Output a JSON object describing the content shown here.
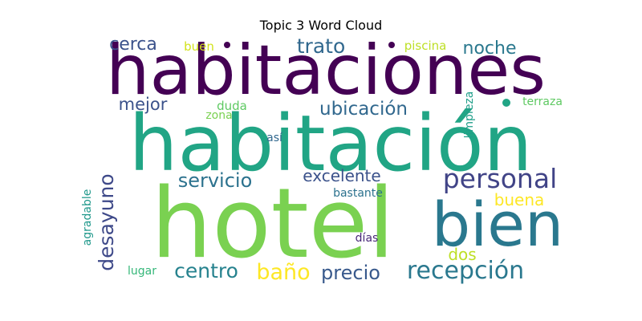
{
  "title": "Topic 3 Word Cloud",
  "words": [
    {
      "text": "habitaciones",
      "color": "#440154"
    },
    {
      "text": "habitación",
      "color": "#21a585"
    },
    {
      "text": "hotel",
      "color": "#7ad151"
    },
    {
      "text": "bien",
      "color": "#2a788e"
    },
    {
      "text": "personal",
      "color": "#414487"
    },
    {
      "text": "recepción",
      "color": "#2a788e"
    },
    {
      "text": "ubicación",
      "color": "#31688e"
    },
    {
      "text": "trato",
      "color": "#31688e"
    },
    {
      "text": "noche",
      "color": "#2a788e"
    },
    {
      "text": "cerca",
      "color": "#3b528b"
    },
    {
      "text": "mejor",
      "color": "#3b528b"
    },
    {
      "text": "servicio",
      "color": "#2c728e"
    },
    {
      "text": "excelente",
      "color": "#3b528b"
    },
    {
      "text": "desayuno",
      "color": "#3e4989"
    },
    {
      "text": "centro",
      "color": "#26828e"
    },
    {
      "text": "baño",
      "color": "#fde725"
    },
    {
      "text": "precio",
      "color": "#38598c"
    },
    {
      "text": "buena",
      "color": "#fde725"
    },
    {
      "text": "dos",
      "color": "#bddf26"
    },
    {
      "text": "buen",
      "color": "#d2e21b"
    },
    {
      "text": "piscina",
      "color": "#bddf26"
    },
    {
      "text": "limpieza",
      "color": "#1f9e89"
    },
    {
      "text": "terraza",
      "color": "#5ec962"
    },
    {
      "text": "duda",
      "color": "#5ec962"
    },
    {
      "text": "zona",
      "color": "#7ad151"
    },
    {
      "text": "así",
      "color": "#31688e"
    },
    {
      "text": "bastante",
      "color": "#2c728e"
    },
    {
      "text": "agradable",
      "color": "#1f988b"
    },
    {
      "text": "días",
      "color": "#482878"
    },
    {
      "text": "lugar",
      "color": "#35b779"
    }
  ]
}
